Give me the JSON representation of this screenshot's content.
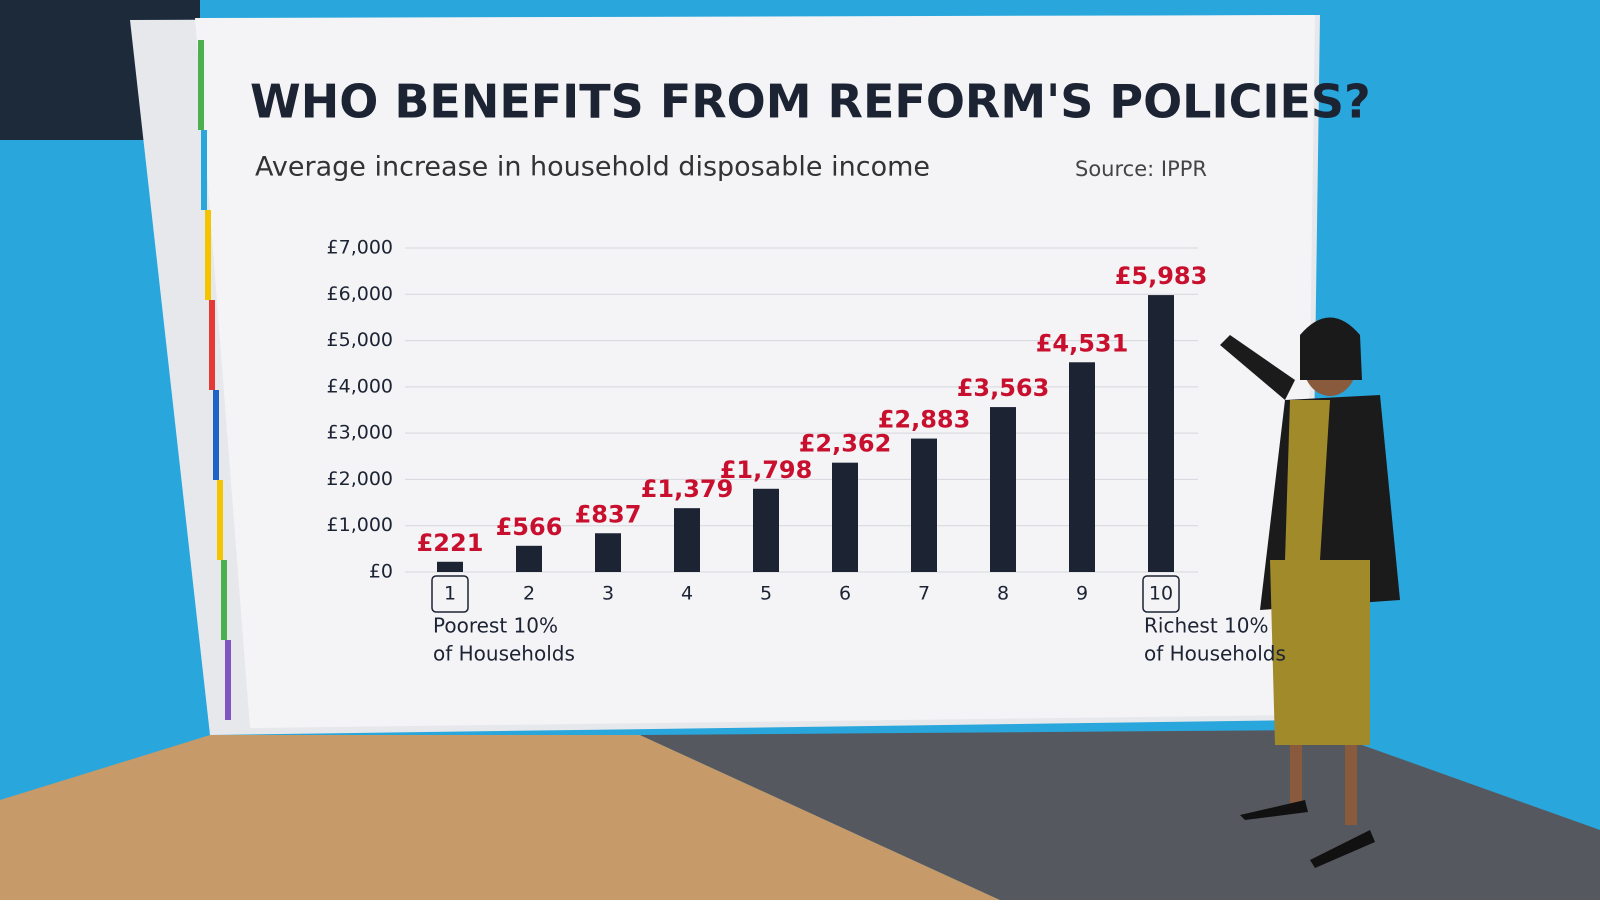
{
  "chart_data": {
    "type": "bar",
    "title": "WHO BENEFITS FROM REFORM'S POLICIES?",
    "subtitle": "Average increase in household disposable income",
    "source": "Source: IPPR",
    "categories": [
      "1",
      "2",
      "3",
      "4",
      "5",
      "6",
      "7",
      "8",
      "9",
      "10"
    ],
    "values": [
      221,
      566,
      837,
      1379,
      1798,
      2362,
      2883,
      3563,
      4531,
      5983
    ],
    "value_labels": [
      "£221",
      "£566",
      "£837",
      "£1,379",
      "£1,798",
      "£2,362",
      "£2,883",
      "£3,563",
      "£4,531",
      "£5,983"
    ],
    "color": "#1c2333",
    "value_label_color": "#c8102e",
    "ylim": [
      0,
      7000
    ],
    "yticks": [
      {
        "value": 0,
        "label": "£0"
      },
      {
        "value": 1000,
        "label": "£1,000"
      },
      {
        "value": 2000,
        "label": "£2,000"
      },
      {
        "value": 3000,
        "label": "£3,000"
      },
      {
        "value": 4000,
        "label": "£4,000"
      },
      {
        "value": 5000,
        "label": "£5,000"
      },
      {
        "value": 6000,
        "label": "£6,000"
      },
      {
        "value": 7000,
        "label": "£7,000"
      }
    ],
    "grid": true,
    "annotations": [
      [
        "Poorest 10%",
        "of Households"
      ],
      [
        "Richest 10%",
        "of Households"
      ]
    ]
  }
}
